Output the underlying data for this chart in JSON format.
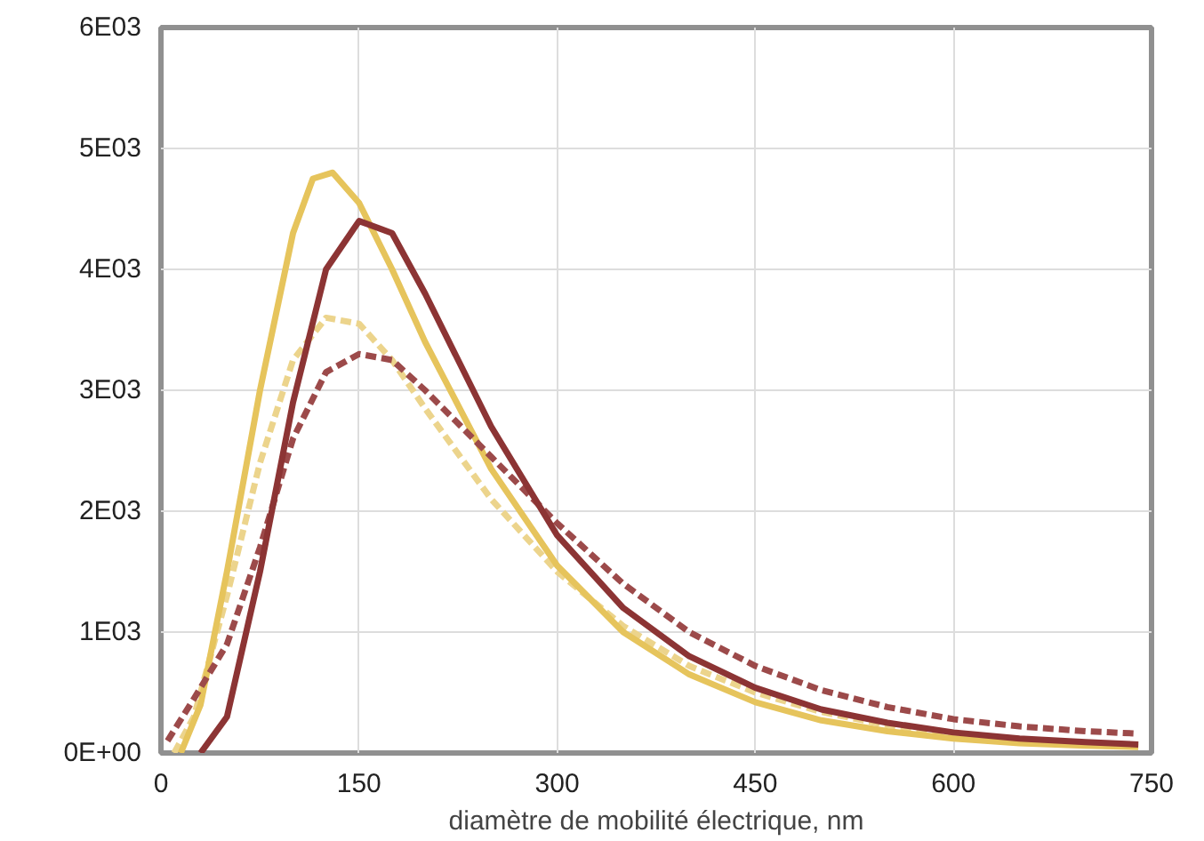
{
  "chart_data": {
    "type": "line",
    "xlabel": "diamètre de mobilité électrique, nm",
    "xlim": [
      0,
      750
    ],
    "ylim": [
      0,
      6000
    ],
    "xticks": [
      0,
      150,
      300,
      450,
      600,
      750
    ],
    "yticks": [
      {
        "value": 0,
        "label": "0E+00"
      },
      {
        "value": 1000,
        "label": "1E03"
      },
      {
        "value": 2000,
        "label": "2E03"
      },
      {
        "value": 3000,
        "label": "3E03"
      },
      {
        "value": 4000,
        "label": "4E03"
      },
      {
        "value": 5000,
        "label": "5E03"
      },
      {
        "value": 6000,
        "label": "6E03"
      }
    ],
    "grid": true,
    "marker": "none",
    "series": [
      {
        "color": "#ecd48c",
        "line_style": "dashed",
        "x": [
          10,
          25,
          50,
          75,
          100,
          125,
          150,
          175,
          200,
          250,
          300,
          350,
          400,
          450,
          500,
          550,
          600,
          650,
          700,
          740
        ],
        "values": [
          0,
          300,
          1300,
          2400,
          3250,
          3600,
          3550,
          3250,
          2850,
          2100,
          1500,
          1050,
          720,
          500,
          340,
          230,
          160,
          110,
          80,
          60
        ]
      },
      {
        "color": "#e6c45c",
        "line_style": "solid",
        "x": [
          15,
          30,
          50,
          75,
          100,
          115,
          130,
          150,
          175,
          200,
          250,
          300,
          350,
          400,
          450,
          500,
          550,
          600,
          650,
          700,
          740
        ],
        "values": [
          0,
          400,
          1500,
          3000,
          4300,
          4750,
          4800,
          4550,
          4000,
          3400,
          2350,
          1550,
          1000,
          650,
          420,
          270,
          180,
          120,
          80,
          60,
          50
        ]
      },
      {
        "color": "#9c4a4a",
        "line_style": "dashed",
        "x": [
          5,
          25,
          50,
          75,
          100,
          125,
          150,
          175,
          200,
          250,
          300,
          350,
          400,
          450,
          500,
          550,
          600,
          650,
          700,
          740
        ],
        "values": [
          100,
          450,
          900,
          1700,
          2600,
          3150,
          3300,
          3250,
          3000,
          2450,
          1900,
          1400,
          1000,
          720,
          520,
          380,
          280,
          220,
          180,
          160
        ]
      },
      {
        "color": "#8c3434",
        "line_style": "solid",
        "x": [
          30,
          50,
          75,
          100,
          125,
          150,
          175,
          200,
          250,
          300,
          350,
          400,
          450,
          500,
          550,
          600,
          650,
          700,
          740
        ],
        "values": [
          0,
          300,
          1500,
          2900,
          4000,
          4400,
          4300,
          3800,
          2700,
          1800,
          1200,
          800,
          540,
          360,
          250,
          170,
          120,
          90,
          70
        ]
      }
    ]
  }
}
